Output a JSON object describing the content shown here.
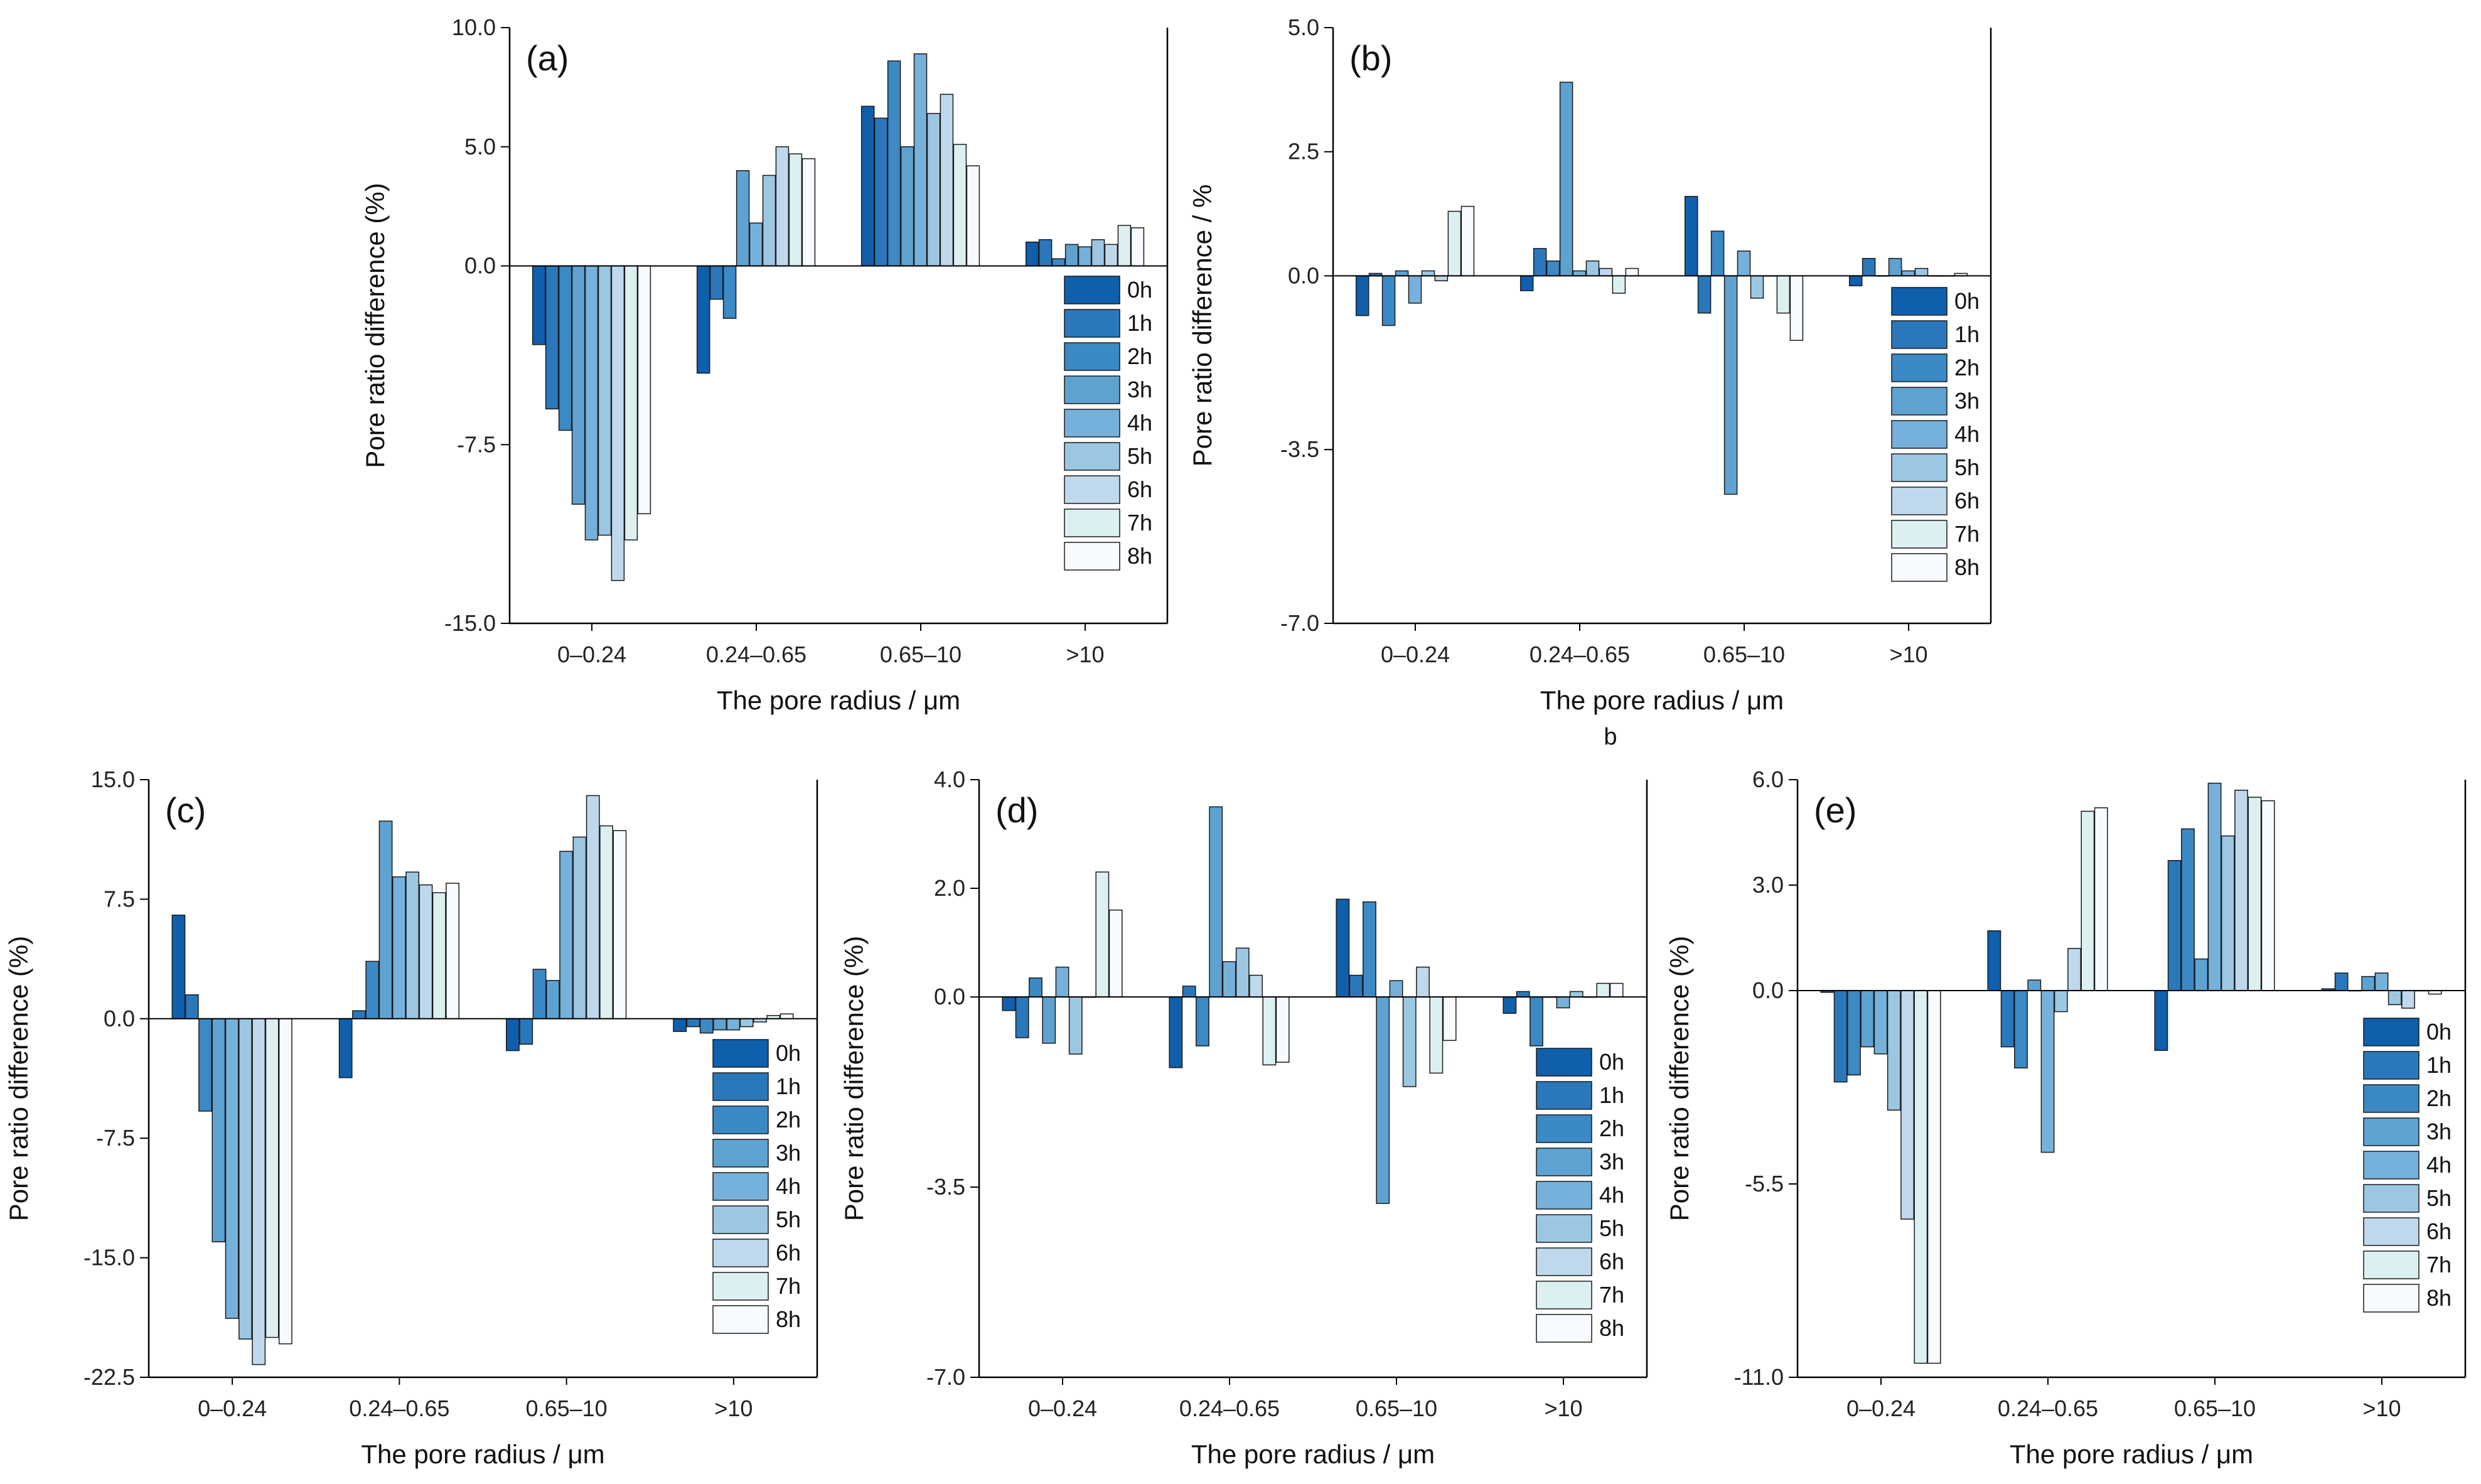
{
  "figure_caption": "b",
  "chart_data": [
    {
      "type": "bar",
      "panel": "(a)",
      "xlabel": "The pore radius / μm",
      "ylabel": "Pore ratio difference (%)",
      "ylim": [
        -15.0,
        10.0
      ],
      "yticks": [
        -15.0,
        -7.5,
        0.0,
        5.0,
        10.0
      ],
      "ytick_labels": [
        "-15.0",
        "-7.5",
        "0.0",
        "5.0",
        "10.0"
      ],
      "categories": [
        "0–0.24",
        "0.24–0.65",
        "0.65–10",
        ">10"
      ],
      "legend": [
        "0h",
        "1h",
        "2h",
        "3h",
        "4h",
        "5h",
        "6h",
        "7h",
        "8h"
      ],
      "legend_position": "right",
      "series": [
        {
          "name": "0h",
          "values": [
            -3.3,
            -4.5,
            6.7,
            1.0
          ]
        },
        {
          "name": "1h",
          "values": [
            -6.0,
            -1.4,
            6.2,
            1.1
          ]
        },
        {
          "name": "2h",
          "values": [
            -6.9,
            -2.2,
            8.6,
            0.3
          ]
        },
        {
          "name": "3h",
          "values": [
            -10.0,
            4.0,
            5.0,
            0.9
          ]
        },
        {
          "name": "4h",
          "values": [
            -11.5,
            1.8,
            8.9,
            0.8
          ]
        },
        {
          "name": "5h",
          "values": [
            -11.3,
            3.8,
            6.4,
            1.1
          ]
        },
        {
          "name": "6h",
          "values": [
            -13.2,
            5.0,
            7.2,
            0.9
          ]
        },
        {
          "name": "7h",
          "values": [
            -11.5,
            4.7,
            5.1,
            1.7
          ]
        },
        {
          "name": "8h",
          "values": [
            -10.4,
            4.5,
            4.2,
            1.6
          ]
        }
      ]
    },
    {
      "type": "bar",
      "panel": "(b)",
      "xlabel": "The pore radius / μm",
      "ylabel": "Pore ratio difference / %",
      "ylim": [
        -7.0,
        5.0
      ],
      "yticks": [
        -7.0,
        -3.5,
        0.0,
        2.5,
        5.0
      ],
      "ytick_labels": [
        "-7.0",
        "-3.5",
        "0.0",
        "2.5",
        "5.0"
      ],
      "categories": [
        "0–0.24",
        "0.24–0.65",
        "0.65–10",
        ">10"
      ],
      "legend": [
        "0h",
        "1h",
        "2h",
        "3h",
        "4h",
        "5h",
        "6h",
        "7h",
        "8h"
      ],
      "legend_position": "right",
      "series": [
        {
          "name": "0h",
          "values": [
            -0.8,
            -0.3,
            1.6,
            -0.2
          ]
        },
        {
          "name": "1h",
          "values": [
            0.05,
            0.55,
            -0.75,
            0.35
          ]
        },
        {
          "name": "2h",
          "values": [
            -1.0,
            0.3,
            0.9,
            0.0
          ]
        },
        {
          "name": "3h",
          "values": [
            0.1,
            3.9,
            -4.4,
            0.35
          ]
        },
        {
          "name": "4h",
          "values": [
            -0.55,
            0.1,
            0.5,
            0.1
          ]
        },
        {
          "name": "5h",
          "values": [
            0.1,
            0.3,
            -0.45,
            0.15
          ]
        },
        {
          "name": "6h",
          "values": [
            -0.1,
            0.15,
            0.0,
            0.0
          ]
        },
        {
          "name": "7h",
          "values": [
            1.3,
            -0.35,
            -0.75,
            0.0
          ]
        },
        {
          "name": "8h",
          "values": [
            1.4,
            0.15,
            -1.3,
            0.05
          ]
        }
      ]
    },
    {
      "type": "bar",
      "panel": "(c)",
      "xlabel": "The pore radius / μm",
      "ylabel": "Pore ratio difference (%)",
      "ylim": [
        -22.5,
        15.0
      ],
      "yticks": [
        -22.5,
        -15.0,
        -7.5,
        0.0,
        7.5,
        15.0
      ],
      "ytick_labels": [
        "-22.5",
        "-15.0",
        "-7.5",
        "0.0",
        "7.5",
        "15.0"
      ],
      "categories": [
        "0–0.24",
        "0.24–0.65",
        "0.65–10",
        ">10"
      ],
      "legend": [
        "0h",
        "1h",
        "2h",
        "3h",
        "4h",
        "5h",
        "6h",
        "7h",
        "8h"
      ],
      "legend_position": "right",
      "series": [
        {
          "name": "0h",
          "values": [
            6.5,
            -3.7,
            -2.0,
            -0.8
          ]
        },
        {
          "name": "1h",
          "values": [
            1.5,
            0.5,
            -1.6,
            -0.5
          ]
        },
        {
          "name": "2h",
          "values": [
            -5.8,
            3.6,
            3.1,
            -0.9
          ]
        },
        {
          "name": "3h",
          "values": [
            -14.0,
            12.4,
            2.4,
            -0.7
          ]
        },
        {
          "name": "4h",
          "values": [
            -18.8,
            8.9,
            10.5,
            -0.7
          ]
        },
        {
          "name": "5h",
          "values": [
            -20.1,
            9.2,
            11.4,
            -0.5
          ]
        },
        {
          "name": "6h",
          "values": [
            -21.7,
            8.4,
            14.0,
            -0.2
          ]
        },
        {
          "name": "7h",
          "values": [
            -20.0,
            7.9,
            12.1,
            0.2
          ]
        },
        {
          "name": "8h",
          "values": [
            -20.4,
            8.5,
            11.8,
            0.3
          ]
        }
      ]
    },
    {
      "type": "bar",
      "panel": "(d)",
      "xlabel": "The pore radius / μm",
      "ylabel": "Pore ratio difference (%)",
      "ylim": [
        -7.0,
        4.0
      ],
      "yticks": [
        -7.0,
        -3.5,
        0.0,
        2.0,
        4.0
      ],
      "ytick_labels": [
        "-7.0",
        "-3.5",
        "0.0",
        "2.0",
        "4.0"
      ],
      "categories": [
        "0–0.24",
        "0.24–0.65",
        "0.65–10",
        ">10"
      ],
      "legend": [
        "0h",
        "1h",
        "2h",
        "3h",
        "4h",
        "5h",
        "6h",
        "7h",
        "8h"
      ],
      "legend_position": "right",
      "series": [
        {
          "name": "0h",
          "values": [
            -0.25,
            -1.3,
            1.8,
            -0.3
          ]
        },
        {
          "name": "1h",
          "values": [
            -0.75,
            0.2,
            0.4,
            0.1
          ]
        },
        {
          "name": "2h",
          "values": [
            0.35,
            -0.9,
            1.75,
            -0.9
          ]
        },
        {
          "name": "3h",
          "values": [
            -0.85,
            3.5,
            -3.8,
            0.0
          ]
        },
        {
          "name": "4h",
          "values": [
            0.55,
            0.65,
            0.3,
            -0.2
          ]
        },
        {
          "name": "5h",
          "values": [
            -1.05,
            0.9,
            -1.65,
            0.1
          ]
        },
        {
          "name": "6h",
          "values": [
            0.0,
            0.4,
            0.55,
            0.0
          ]
        },
        {
          "name": "7h",
          "values": [
            2.3,
            -1.25,
            -1.4,
            0.25
          ]
        },
        {
          "name": "8h",
          "values": [
            1.6,
            -1.2,
            -0.8,
            0.25
          ]
        }
      ]
    },
    {
      "type": "bar",
      "panel": "(e)",
      "xlabel": "The pore radius / μm",
      "ylabel": "Pore ratio difference (%)",
      "ylim": [
        -11.0,
        6.0
      ],
      "yticks": [
        -11.0,
        -5.5,
        0.0,
        3.0,
        6.0
      ],
      "ytick_labels": [
        "-11.0",
        "-5.5",
        "0.0",
        "3.0",
        "6.0"
      ],
      "categories": [
        "0–0.24",
        "0.24–0.65",
        "0.65–10",
        ">10"
      ],
      "legend": [
        "0h",
        "1h",
        "2h",
        "3h",
        "4h",
        "5h",
        "6h",
        "7h",
        "8h"
      ],
      "legend_position": "right",
      "series": [
        {
          "name": "0h",
          "values": [
            -0.05,
            1.7,
            -1.7,
            0.05
          ]
        },
        {
          "name": "1h",
          "values": [
            -2.6,
            -1.6,
            3.7,
            0.5
          ]
        },
        {
          "name": "2h",
          "values": [
            -2.4,
            -2.2,
            4.6,
            0.0
          ]
        },
        {
          "name": "3h",
          "values": [
            -1.6,
            0.3,
            0.9,
            0.4
          ]
        },
        {
          "name": "4h",
          "values": [
            -1.8,
            -4.6,
            5.9,
            0.5
          ]
        },
        {
          "name": "5h",
          "values": [
            -3.4,
            -0.6,
            4.4,
            -0.4
          ]
        },
        {
          "name": "6h",
          "values": [
            -6.5,
            1.2,
            5.7,
            -0.5
          ]
        },
        {
          "name": "7h",
          "values": [
            -10.6,
            5.1,
            5.5,
            0.0
          ]
        },
        {
          "name": "8h",
          "values": [
            -10.6,
            5.2,
            5.4,
            -0.1
          ]
        }
      ]
    }
  ],
  "colors": {
    "series": [
      "#0f5fad",
      "#2a78bb",
      "#3b89c5",
      "#5ea2d1",
      "#75b1da",
      "#9bc7e3",
      "#bfd8ec",
      "#dcf0f2",
      "#f7fbff"
    ],
    "axis": "#000000",
    "bar_edge": "#1a1a1a"
  }
}
